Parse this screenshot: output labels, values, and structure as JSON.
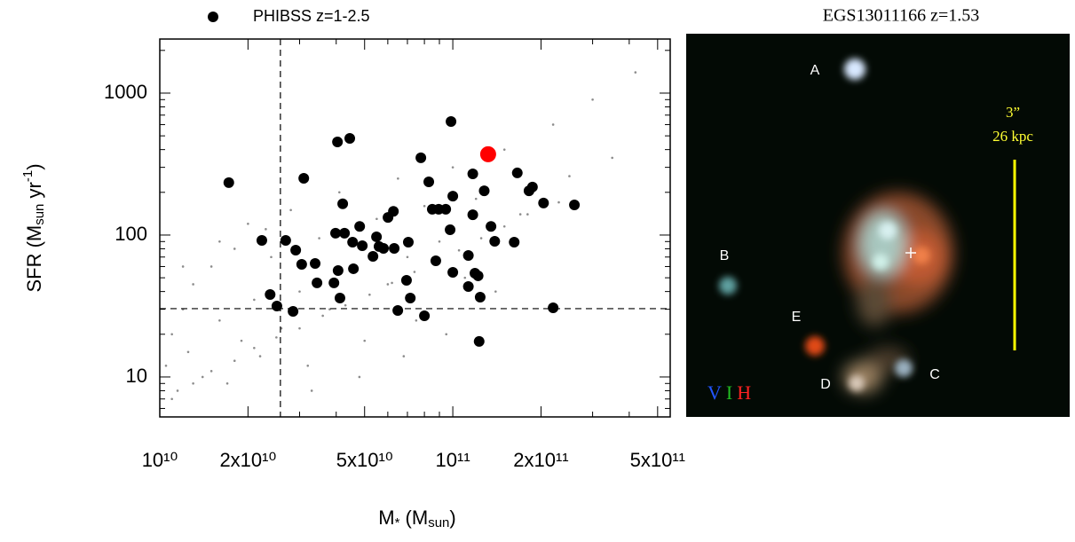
{
  "chart_data": {
    "type": "scatter",
    "xlabel_parts": [
      "M",
      "*",
      " (M",
      "sun",
      ")"
    ],
    "ylabel_parts": [
      "SFR (M",
      "sun",
      " yr",
      "-1",
      ")"
    ],
    "xlog": true,
    "ylog": true,
    "xlim": [
      10000000000.0,
      552000000000.0
    ],
    "ylim": [
      5.23,
      2405
    ],
    "xticks": [
      {
        "value": 10000000000.0,
        "label": "10¹⁰"
      },
      {
        "value": 20000000000.0,
        "label": "2x10¹⁰"
      },
      {
        "value": 50000000000.0,
        "label": "5x10¹⁰"
      },
      {
        "value": 100000000000.0,
        "label": "10¹¹"
      },
      {
        "value": 200000000000.0,
        "label": "2x10¹¹"
      },
      {
        "value": 500000000000.0,
        "label": "5x10¹¹"
      }
    ],
    "yticks": [
      10,
      100,
      1000
    ],
    "xminorticks": [
      30000000000.0,
      40000000000.0,
      60000000000.0,
      70000000000.0,
      80000000000.0,
      90000000000.0,
      300000000000.0,
      400000000000.0
    ],
    "yminorticks": [
      6,
      7,
      8,
      9,
      20,
      30,
      40,
      50,
      60,
      70,
      80,
      90,
      200,
      300,
      400,
      500,
      600,
      700,
      800,
      900,
      2000
    ],
    "vlines": [
      25800000000.0
    ],
    "hlines": [
      30.3
    ],
    "legend": "top-left",
    "series": [
      {
        "color": "#8c8c8c",
        "marker": "small",
        "x": [
          10500000000.0,
          11000000000.0,
          11500000000.0,
          12000000000.0,
          12500000000.0,
          13000000000.0,
          14000000000.0,
          15000000000.0,
          16000000000.0,
          17000000000.0,
          18000000000.0,
          19000000000.0,
          20000000000.0,
          21000000000.0,
          22000000000.0,
          24000000000.0,
          26000000000.0,
          28000000000.0,
          30000000000.0,
          32000000000.0,
          35000000000.0,
          38000000000.0,
          41000000000.0,
          45000000000.0,
          50000000000.0,
          55000000000.0,
          60000000000.0,
          65000000000.0,
          70000000000.0,
          75000000000.0,
          80000000000.0,
          90000000000.0,
          100000000000.0,
          110000000000.0,
          120000000000.0,
          135000000000.0,
          150000000000.0,
          170000000000.0,
          190000000000.0,
          220000000000.0,
          250000000000.0,
          300000000000.0,
          350000000000.0,
          420000000000.0,
          11000000000.0,
          13000000000.0,
          15000000000.0,
          18000000000.0,
          21000000000.0,
          25000000000.0,
          30000000000.0,
          36000000000.0,
          43000000000.0,
          52000000000.0,
          62000000000.0,
          74000000000.0,
          88000000000.0,
          105000000000.0,
          125000000000.0,
          150000000000.0,
          180000000000.0,
          230000000000.0,
          12000000000.0,
          16000000000.0,
          23000000000.0,
          33000000000.0,
          48000000000.0,
          68000000000.0,
          95000000000.0,
          140000000000.0
        ],
        "values": [
          12,
          20,
          8,
          30,
          15,
          45,
          10,
          60,
          25,
          9,
          80,
          18,
          120,
          35,
          14,
          70,
          22,
          150,
          40,
          12,
          95,
          30,
          200,
          55,
          18,
          130,
          45,
          250,
          70,
          25,
          160,
          90,
          300,
          50,
          180,
          110,
          400,
          140,
          220,
          600,
          260,
          900,
          350,
          1400,
          7,
          9,
          11,
          13,
          16,
          19,
          22,
          27,
          32,
          38,
          46,
          55,
          65,
          78,
          95,
          115,
          140,
          170,
          60,
          90,
          110,
          8,
          10,
          14,
          20,
          40
        ]
      },
      {
        "name": "PHIBSS z=1-2.5",
        "color": "#000000",
        "marker": "large",
        "x": [
          17200000000.0,
          22300000000.0,
          23800000000.0,
          25100000000.0,
          26900000000.0,
          28500000000.0,
          29100000000.0,
          30500000000.0,
          31000000000.0,
          33900000000.0,
          34400000000.0,
          39800000000.0,
          40600000000.0,
          39300000000.0,
          40400000000.0,
          41200000000.0,
          42100000000.0,
          42700000000.0,
          44500000000.0,
          45500000000.0,
          45800000000.0,
          48100000000.0,
          49100000000.0,
          53400000000.0,
          54900000000.0,
          56000000000.0,
          58000000000.0,
          60100000000.0,
          62700000000.0,
          63100000000.0,
          64900000000.0,
          69500000000.0,
          71600000000.0,
          70500000000.0,
          77800000000.0,
          80000000000.0,
          82800000000.0,
          85100000000.0,
          87500000000.0,
          89500000000.0,
          94600000000.0,
          97900000000.0,
          98600000000.0,
          100000000000.0,
          100000000000.0,
          113000000000.0,
          113000000000.0,
          117000000000.0,
          117000000000.0,
          119000000000.0,
          122000000000.0,
          124000000000.0,
          123000000000.0,
          128000000000.0,
          135000000000.0,
          139000000000.0,
          162000000000.0,
          166000000000.0,
          182000000000.0,
          187000000000.0,
          204000000000.0,
          220000000000.0,
          260000000000.0
        ],
        "values": [
          234,
          91.7,
          38.1,
          31.6,
          91.7,
          29.0,
          78.3,
          62.2,
          251,
          63.1,
          46.0,
          103,
          56.2,
          46.0,
          453,
          36.0,
          166,
          103,
          480,
          89.1,
          57.9,
          115,
          84.1,
          70.8,
          97.2,
          83.0,
          80.5,
          133,
          147,
          80.5,
          29.4,
          48.0,
          36.0,
          89.1,
          350,
          27.0,
          237,
          152,
          65.9,
          152,
          152,
          109,
          631,
          188,
          54.6,
          71.8,
          43.4,
          270,
          139,
          53.8,
          51.6,
          36.5,
          17.8,
          205,
          115,
          90.4,
          89.1,
          274,
          205,
          218,
          168,
          30.7,
          163
        ]
      },
      {
        "color": "#ff0000",
        "marker": "large",
        "x": [
          132000000000.0
        ],
        "values": [
          371
        ]
      }
    ]
  },
  "image_panel": {
    "title": "EGS13011166 z=1.53",
    "labels": [
      "A",
      "B",
      "C",
      "D",
      "E"
    ],
    "scale_bar": [
      "3”",
      "26 kpc"
    ],
    "filters": [
      "V",
      "I",
      "H"
    ]
  }
}
